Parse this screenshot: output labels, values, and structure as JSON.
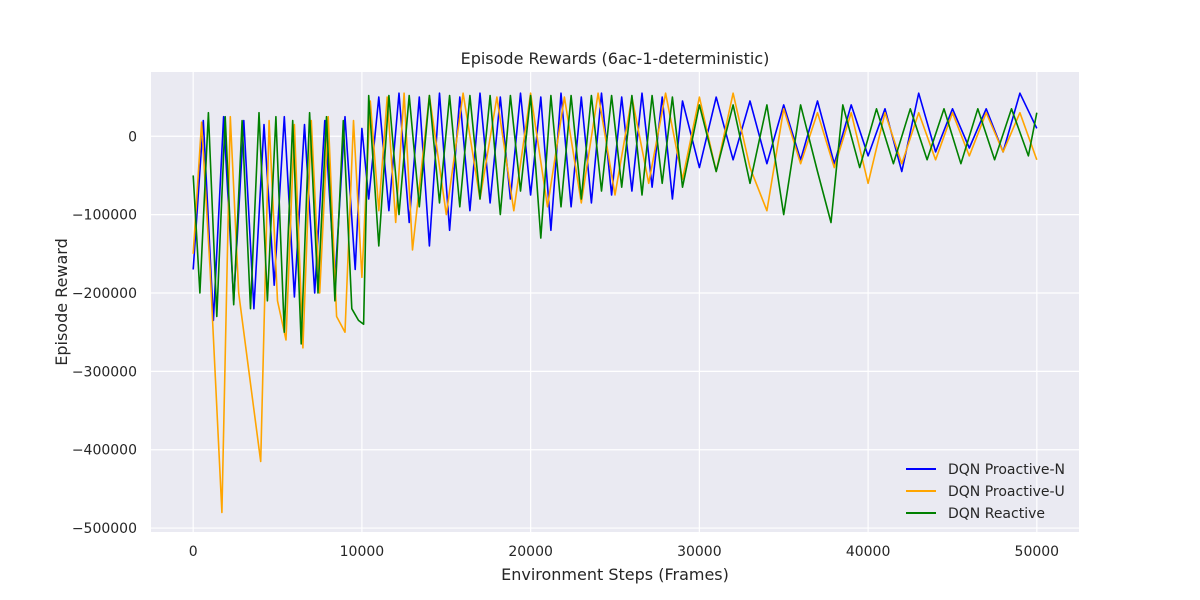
{
  "chart_data": {
    "type": "line",
    "title": "Episode Rewards (6ac-1-deterministic)",
    "xlabel": "Environment Steps (Frames)",
    "ylabel": "Episode Reward",
    "xlim": [
      -2500,
      52500
    ],
    "ylim": [
      -505000,
      82000
    ],
    "xticks": [
      0,
      10000,
      20000,
      30000,
      40000,
      50000
    ],
    "yticks": [
      0,
      -100000,
      -200000,
      -300000,
      -400000,
      -500000
    ],
    "xtick_labels": [
      "0",
      "10000",
      "20000",
      "30000",
      "40000",
      "50000"
    ],
    "ytick_labels": [
      "0",
      "−100000",
      "−200000",
      "−300000",
      "−400000",
      "−500000"
    ],
    "grid": true,
    "background": "#eaeaf2",
    "legend_position": "lower-right",
    "series": [
      {
        "name": "DQN Proactive-N",
        "color": "#0000ff",
        "x": [
          0,
          600,
          1200,
          1800,
          2400,
          3000,
          3600,
          4200,
          4800,
          5400,
          6000,
          6600,
          7200,
          7800,
          8400,
          9000,
          9600,
          10000,
          10400,
          11000,
          11600,
          12200,
          12800,
          13400,
          14000,
          14600,
          15200,
          15800,
          16400,
          17000,
          17600,
          18200,
          18800,
          19400,
          20000,
          20600,
          21200,
          21800,
          22400,
          23000,
          23600,
          24200,
          24800,
          25400,
          26000,
          26600,
          27200,
          27800,
          28400,
          29000,
          30000,
          31000,
          32000,
          33000,
          34000,
          35000,
          36000,
          37000,
          38000,
          39000,
          40000,
          41000,
          42000,
          43000,
          44000,
          45000,
          46000,
          47000,
          48000,
          49000,
          50000
        ],
        "y": [
          -170000,
          20000,
          -235000,
          25000,
          -210000,
          20000,
          -220000,
          15000,
          -190000,
          25000,
          -205000,
          15000,
          -200000,
          20000,
          -185000,
          25000,
          -170000,
          10000,
          -80000,
          50000,
          -95000,
          55000,
          -110000,
          50000,
          -140000,
          55000,
          -120000,
          50000,
          -95000,
          55000,
          -85000,
          50000,
          -80000,
          55000,
          -75000,
          50000,
          -120000,
          55000,
          -90000,
          50000,
          -85000,
          55000,
          -75000,
          50000,
          -70000,
          55000,
          -65000,
          50000,
          -80000,
          45000,
          -40000,
          50000,
          -30000,
          45000,
          -35000,
          40000,
          -30000,
          45000,
          -35000,
          40000,
          -25000,
          35000,
          -45000,
          55000,
          -20000,
          35000,
          -15000,
          35000,
          -20000,
          55000,
          10000
        ]
      },
      {
        "name": "DQN Proactive-U",
        "color": "#ffa500",
        "x": [
          0,
          500,
          1000,
          1700,
          2200,
          2700,
          3300,
          4000,
          4500,
          5000,
          5500,
          6000,
          6500,
          7000,
          7500,
          8000,
          8500,
          9000,
          9500,
          10000,
          10500,
          11000,
          11500,
          12000,
          12500,
          13000,
          14000,
          15000,
          16000,
          17000,
          18000,
          19000,
          20000,
          21000,
          22000,
          23000,
          24000,
          25000,
          26000,
          27000,
          28000,
          29000,
          30000,
          31000,
          32000,
          33000,
          34000,
          35000,
          36000,
          37000,
          38000,
          39000,
          40000,
          41000,
          42000,
          43000,
          44000,
          45000,
          46000,
          47000,
          48000,
          49000,
          50000
        ],
        "y": [
          -150000,
          18000,
          -170000,
          -480000,
          25000,
          -200000,
          -300000,
          -415000,
          20000,
          -210000,
          -260000,
          15000,
          -270000,
          20000,
          -200000,
          25000,
          -230000,
          -250000,
          20000,
          -180000,
          45000,
          -95000,
          50000,
          -110000,
          55000,
          -145000,
          52000,
          -100000,
          55000,
          -80000,
          50000,
          -95000,
          55000,
          -90000,
          50000,
          -85000,
          55000,
          -75000,
          50000,
          -60000,
          55000,
          -55000,
          50000,
          -45000,
          55000,
          -40000,
          -95000,
          35000,
          -35000,
          30000,
          -40000,
          30000,
          -60000,
          30000,
          -35000,
          30000,
          -30000,
          30000,
          -25000,
          30000,
          -20000,
          30000,
          -30000
        ]
      },
      {
        "name": "DQN Reactive",
        "color": "#008000",
        "x": [
          0,
          400,
          900,
          1400,
          1900,
          2400,
          2900,
          3400,
          3900,
          4400,
          4900,
          5400,
          5900,
          6400,
          6900,
          7400,
          7900,
          8400,
          8900,
          9400,
          9800,
          10100,
          10400,
          11000,
          11600,
          12200,
          12800,
          13400,
          14000,
          14600,
          15200,
          15800,
          16400,
          17000,
          17600,
          18200,
          18800,
          19400,
          20000,
          20600,
          21200,
          21800,
          22400,
          23000,
          23600,
          24200,
          24800,
          25400,
          26000,
          26600,
          27200,
          27800,
          28400,
          29000,
          30000,
          31000,
          32000,
          33000,
          34000,
          35000,
          36000,
          37000,
          37800,
          38500,
          39500,
          40500,
          41500,
          42500,
          43500,
          44500,
          45500,
          46500,
          47500,
          48500,
          49500,
          50000
        ],
        "y": [
          -50000,
          -200000,
          30000,
          -230000,
          25000,
          -215000,
          20000,
          -220000,
          30000,
          -210000,
          25000,
          -250000,
          20000,
          -265000,
          30000,
          -200000,
          25000,
          -210000,
          20000,
          -220000,
          -235000,
          -240000,
          52000,
          -140000,
          52000,
          -100000,
          52000,
          -90000,
          52000,
          -85000,
          52000,
          -90000,
          52000,
          -80000,
          52000,
          -100000,
          52000,
          -70000,
          52000,
          -130000,
          52000,
          -90000,
          52000,
          -80000,
          52000,
          -70000,
          52000,
          -65000,
          52000,
          -75000,
          52000,
          -60000,
          50000,
          -65000,
          40000,
          -45000,
          40000,
          -60000,
          40000,
          -100000,
          40000,
          -45000,
          -110000,
          40000,
          -40000,
          35000,
          -35000,
          35000,
          -30000,
          35000,
          -35000,
          35000,
          -30000,
          35000,
          -25000,
          30000
        ]
      }
    ]
  }
}
